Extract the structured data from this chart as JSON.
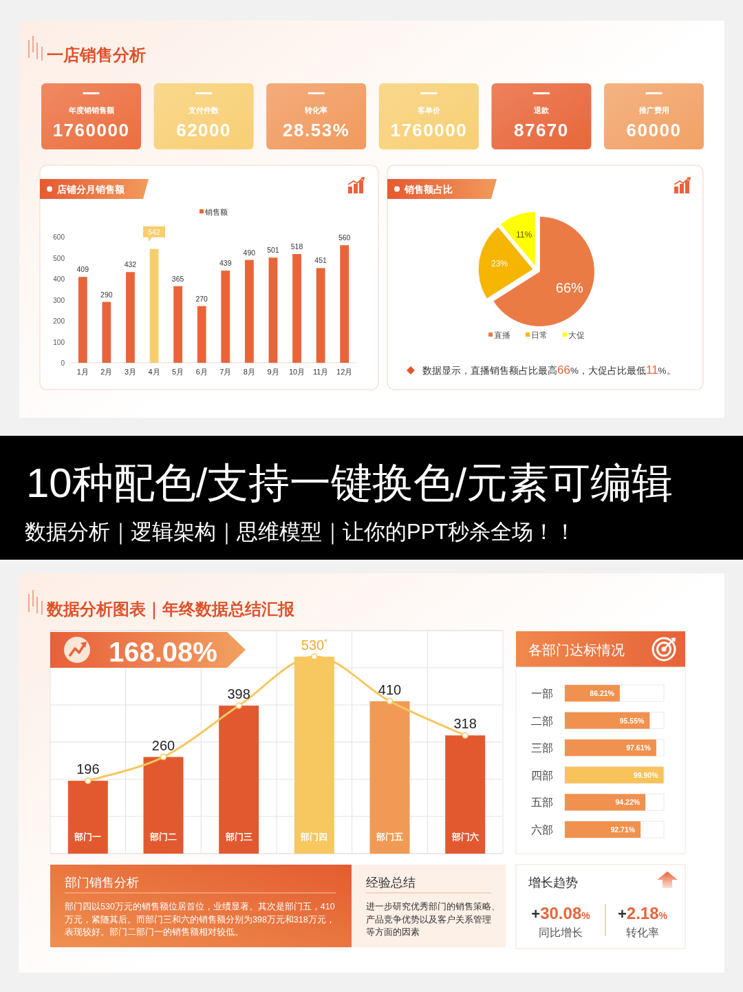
{
  "chart_data": [
    {
      "type": "other",
      "title": "一店销售分析",
      "categories": [
        "年度销销售额",
        "支付件数",
        "转化率",
        "客单价",
        "退款",
        "推广费用"
      ],
      "value_labels": [
        "1760000",
        "62000",
        "28.53%",
        "1760000",
        "87670",
        "60000"
      ],
      "colors": [
        "#ec6f3f",
        "#f8cf74",
        "#f19a5e",
        "#f8cf74",
        "#e8663a",
        "#f2a266"
      ]
    },
    {
      "type": "bar",
      "title": "店铺分月销售额",
      "categories": [
        "1月",
        "2月",
        "3月",
        "4月",
        "5月",
        "6月",
        "7月",
        "8月",
        "9月",
        "10月",
        "11月",
        "12月"
      ],
      "series": [
        {
          "name": "销售额",
          "color": "#e8653a",
          "colors": [
            "#e8653a",
            "#e8653a",
            "#e8653a",
            "#f8cd6e",
            "#e8653a",
            "#e8653a",
            "#e8653a",
            "#e8653a",
            "#e8653a",
            "#e8653a",
            "#e8653a",
            "#e8653a"
          ],
          "values": [
            409,
            290,
            432,
            542,
            365,
            270,
            439,
            490,
            501,
            518,
            451,
            560
          ]
        }
      ],
      "ylim": [
        0,
        600
      ],
      "yticks": [
        0,
        100,
        200,
        300,
        400,
        500,
        600
      ],
      "data_labels": true,
      "legend": "top"
    },
    {
      "type": "pie",
      "title": "销售额占比",
      "categories": [
        "直播",
        "日常",
        "大促"
      ],
      "values": [
        66,
        23,
        11
      ],
      "value_labels": [
        "66%",
        "23%",
        "11%"
      ],
      "colors": [
        "#ea7b45",
        "#f6b500",
        "#ffff00"
      ],
      "legend": "bottom",
      "annotations": [
        "数据显示，直播销售额占比最高66%，大促占比最低11%。"
      ]
    },
    {
      "type": "other",
      "title": "10种配色/支持一键换色/元素可编辑",
      "subtitle": "数据分析｜逻辑架构｜思维模型｜让你的PPT秒杀全场！！"
    },
    {
      "type": "bar",
      "title": "数据分析图表｜年终数据总结汇报",
      "categories": [
        "部门一",
        "部门二",
        "部门三",
        "部门四",
        "部门五",
        "部门六"
      ],
      "series": [
        {
          "type": "bar",
          "colors": [
            "#e2592f",
            "#e2592f",
            "#e2592f",
            "#f7c760",
            "#f09a55",
            "#e2592f"
          ],
          "values": [
            196,
            260,
            398,
            530,
            410,
            318
          ],
          "value_labels": [
            "196",
            "260",
            "398",
            "530$^{*}$",
            "410",
            "318"
          ]
        },
        {
          "type": "line",
          "color": "#f7c760",
          "values": [
            196,
            260,
            398,
            530,
            410,
            318
          ]
        }
      ],
      "marker": "circle",
      "ylim": [
        0,
        600
      ],
      "yticks": [
        {
          "value": 0,
          "label": null
        },
        {
          "value": 100,
          "label": null
        },
        {
          "value": 200,
          "label": null
        },
        {
          "value": 300,
          "label": null
        },
        {
          "value": 400,
          "label": null
        },
        {
          "value": 500,
          "label": null
        },
        {
          "value": 600,
          "label": null
        }
      ],
      "tick_labels": "x",
      "grid": true,
      "annotations": [
        "168.08%"
      ]
    },
    {
      "type": "bar",
      "orientation": "horizontal",
      "title": "各部门达标情况",
      "categories": [
        "一部",
        "二部",
        "三部",
        "四部",
        "五部",
        "六部"
      ],
      "values": [
        86.21,
        95.55,
        97.61,
        99.9,
        94.22,
        92.71
      ],
      "value_labels": [
        "86.21%",
        "95.55%",
        "97.61%",
        "99.90%",
        "94.22%",
        "92.71%"
      ],
      "colors": [
        "#f0914f",
        "#f0914f",
        "#f0914f",
        "#f7c35a",
        "#f0914f",
        "#f0914f"
      ],
      "xlim": [
        69,
        100
      ],
      "tick_labels": "y"
    },
    {
      "type": "other",
      "title": "部门销售分析",
      "annotations": [
        "部门四以530万元的销售额位居首位，业绩显著。其次是部门五，410万元，紧随其后。而部门三和六的销售额分别为398万元和318万元，表现较好。部门二部门一的销售额相对较低。"
      ]
    },
    {
      "type": "other",
      "title": "经验总结",
      "annotations": [
        "进一步研究优秀部门的销售策略、产品竞争优势以及客户关系管理等方面的因素"
      ]
    },
    {
      "type": "other",
      "title": "增长趋势",
      "categories": [
        "同比增长",
        "转化率"
      ],
      "value_labels": [
        "+30.08%",
        "+2.18%"
      ]
    }
  ]
}
